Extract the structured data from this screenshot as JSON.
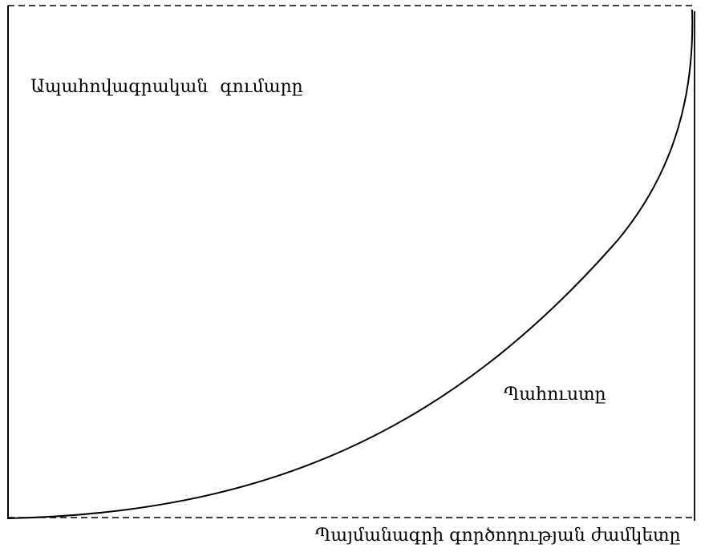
{
  "diagram": {
    "y_axis_label": "Ապահովագրական  գումարը",
    "curve_label": "Պահուստը",
    "x_axis_label": "Պայմանագրի գործողության ժամկետը",
    "colors": {
      "line": "#000000",
      "background": "#ffffff"
    }
  }
}
